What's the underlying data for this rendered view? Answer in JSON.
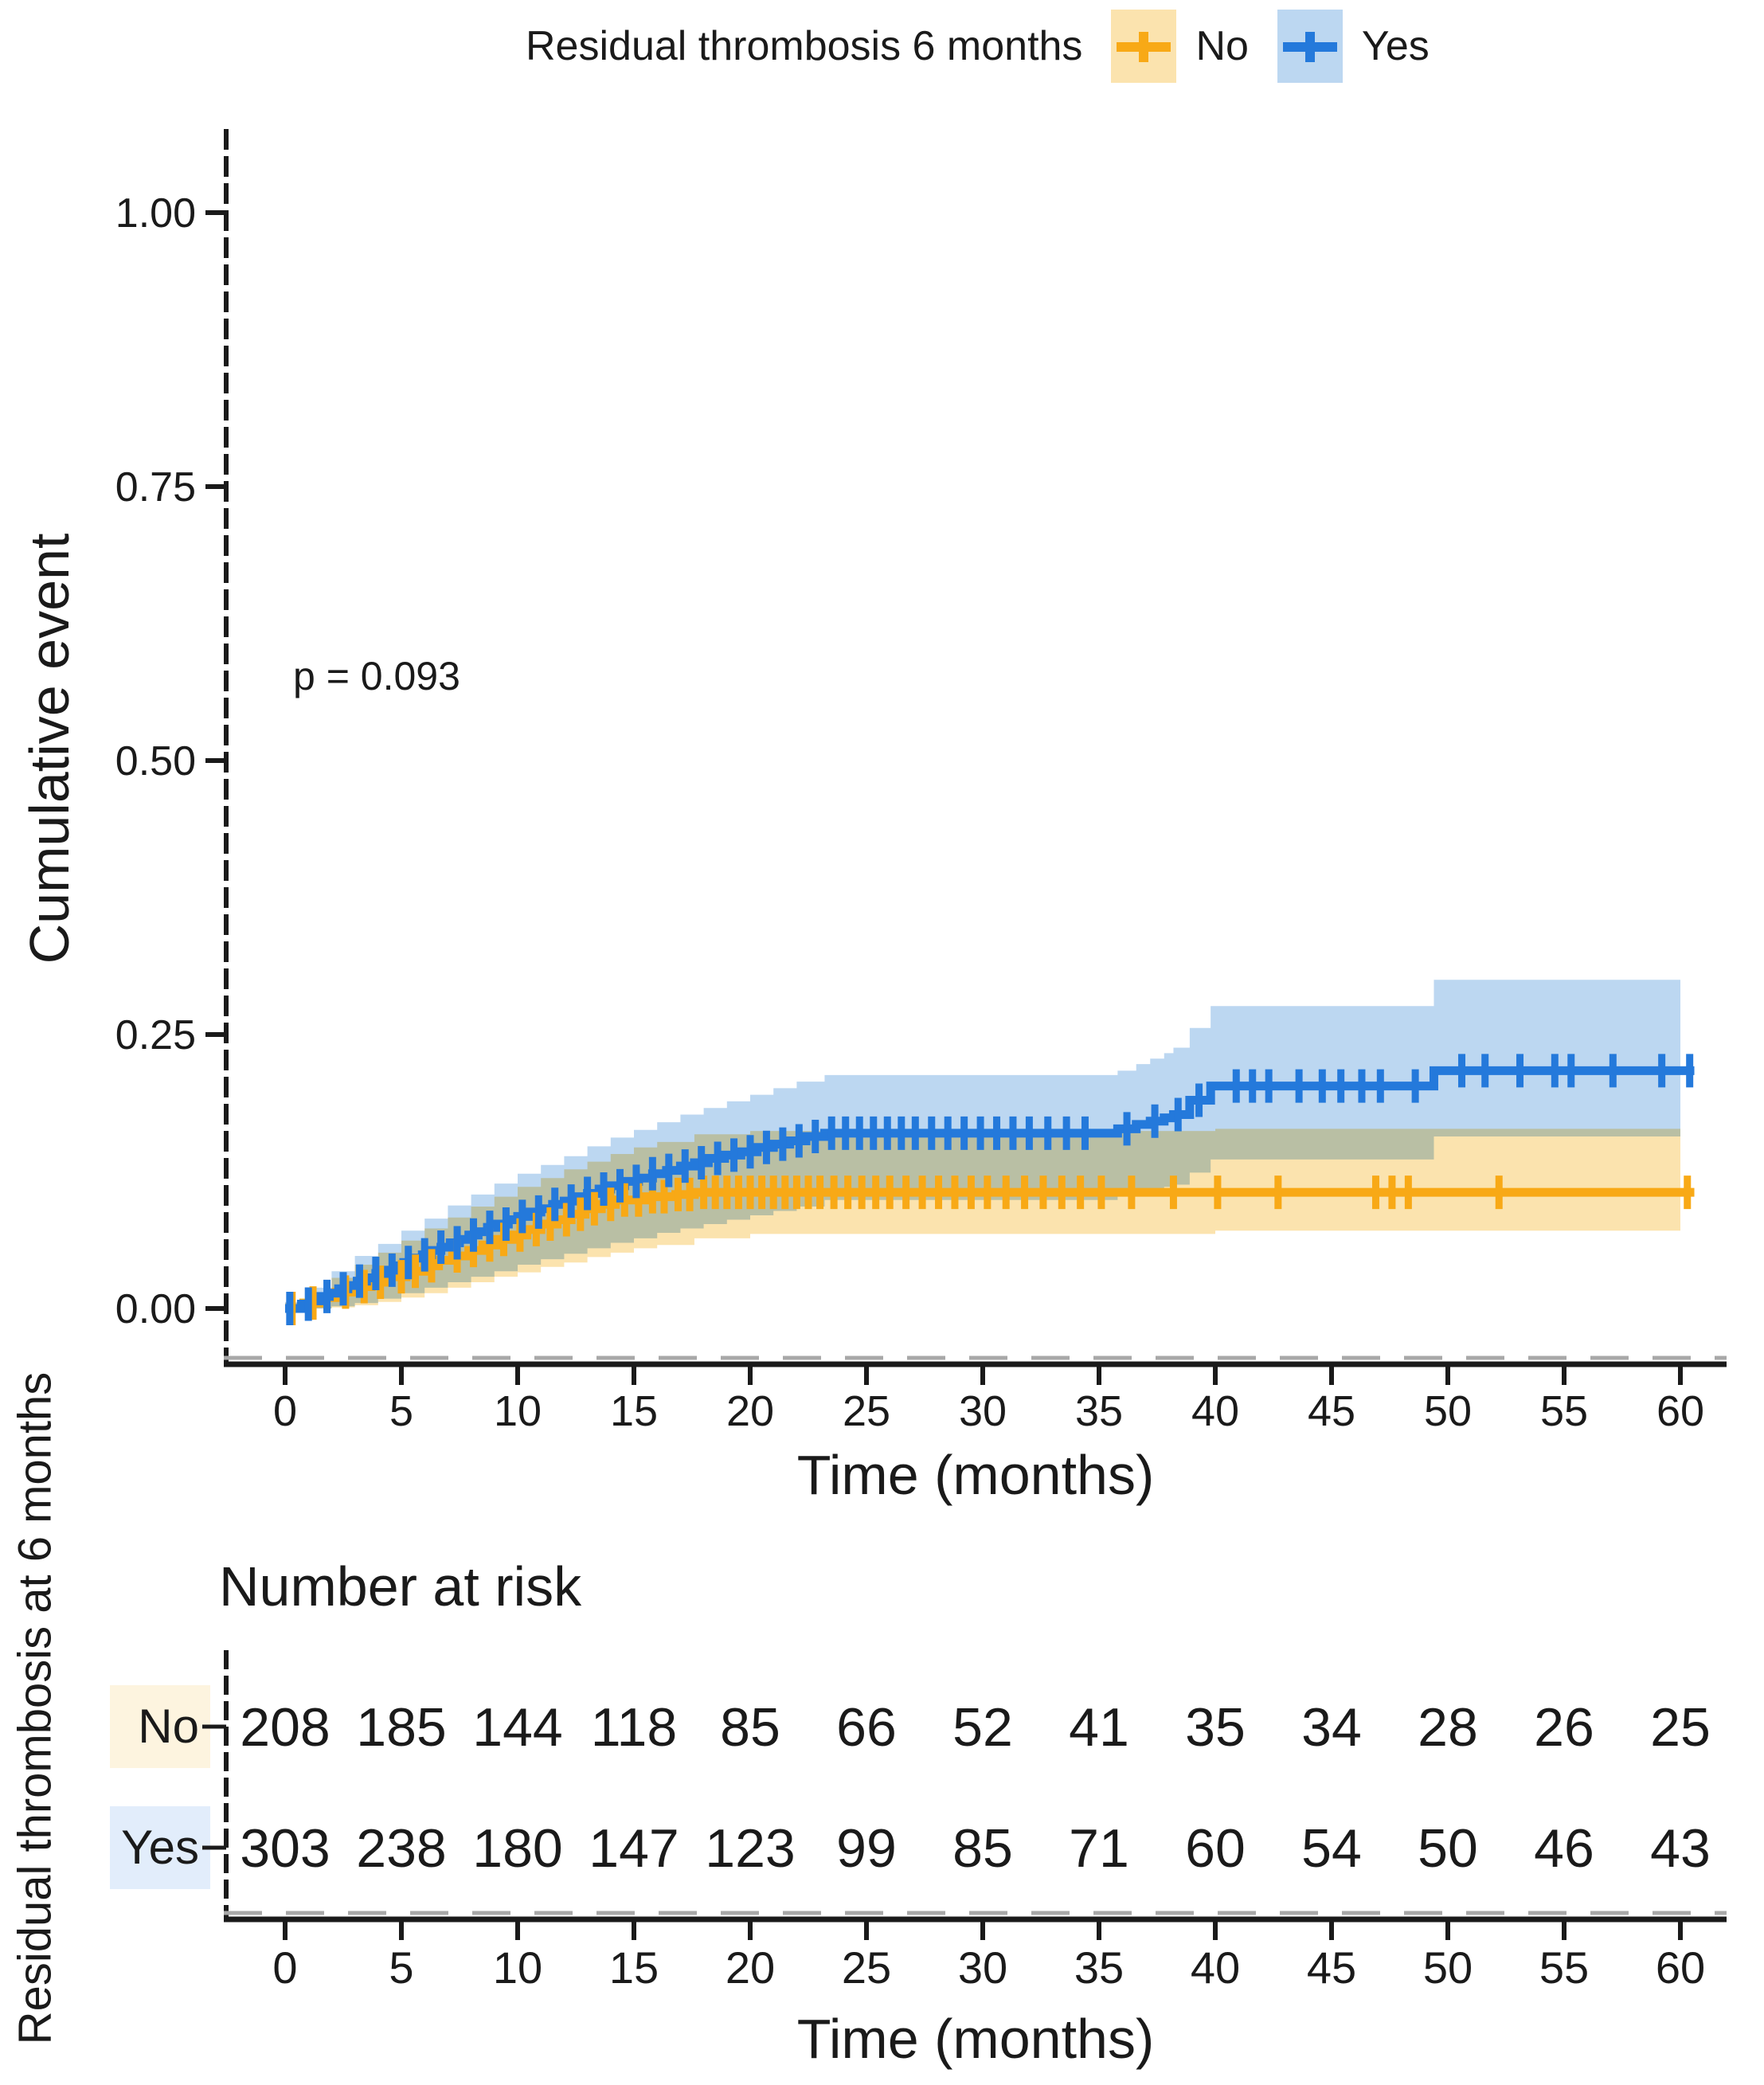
{
  "legend": {
    "title": "Residual thrombosis 6 months",
    "items": [
      {
        "label": "No",
        "color": "#F8A916",
        "band_color": "#FBE3AE"
      },
      {
        "label": "Yes",
        "color": "#2479DB",
        "band_color": "#BCD7F1"
      }
    ]
  },
  "annotation": {
    "p_value": "p = 0.093"
  },
  "axes": {
    "y_label": "Cumulative event",
    "x_label": "Time (months)",
    "y_tick_labels": [
      "1.00",
      "0.75",
      "0.50",
      "0.25",
      "0.00"
    ],
    "x_ticks": [
      0,
      5,
      10,
      15,
      20,
      25,
      30,
      35,
      40,
      45,
      50,
      55,
      60
    ]
  },
  "risk_table": {
    "title": "Number at risk",
    "axis_label": "Residual thrombosis at 6 months",
    "x_label": "Time (months)",
    "rows": [
      {
        "label": "No",
        "color": "#F8A916",
        "label_bg": "#FDF4DF",
        "values": [
          208,
          185,
          144,
          118,
          85,
          66,
          52,
          41,
          35,
          34,
          28,
          26,
          25
        ]
      },
      {
        "label": "Yes",
        "color": "#4D94E8",
        "label_bg": "#E2EDFB",
        "values": [
          303,
          238,
          180,
          147,
          123,
          99,
          85,
          71,
          60,
          54,
          50,
          46,
          43
        ]
      }
    ]
  },
  "chart_data": {
    "type": "line",
    "subtype": "kaplan-meier-cumulative-incidence",
    "group_title": "Residual thrombosis 6 months",
    "xlabel": "Time (months)",
    "ylabel": "Cumulative event",
    "xlim": [
      0,
      62
    ],
    "ylim": [
      0,
      1.04
    ],
    "x_ticks": [
      0,
      5,
      10,
      15,
      20,
      25,
      30,
      35,
      40,
      45,
      50,
      55,
      60
    ],
    "y_ticks": [
      0,
      0.25,
      0.5,
      0.75,
      1.0
    ],
    "p_value_text": "p = 0.093",
    "series": [
      {
        "name": "No",
        "color": "#F8A916",
        "band_color": "#FBE3AE",
        "n_at_start": 208,
        "steps": [
          [
            0,
            0
          ],
          [
            0.8,
            0.005
          ],
          [
            1.5,
            0.01
          ],
          [
            2.2,
            0.015
          ],
          [
            3,
            0.02
          ],
          [
            3.7,
            0.024
          ],
          [
            4.5,
            0.029
          ],
          [
            5.2,
            0.034
          ],
          [
            6,
            0.039
          ],
          [
            6.6,
            0.044
          ],
          [
            7.2,
            0.048
          ],
          [
            7.9,
            0.053
          ],
          [
            8.5,
            0.058
          ],
          [
            9.1,
            0.063
          ],
          [
            9.8,
            0.067
          ],
          [
            10.4,
            0.072
          ],
          [
            11,
            0.077
          ],
          [
            11.7,
            0.081
          ],
          [
            12.3,
            0.086
          ],
          [
            12.9,
            0.091
          ],
          [
            13.6,
            0.095
          ],
          [
            14.2,
            0.099
          ],
          [
            15.5,
            0.102
          ],
          [
            16.8,
            0.104
          ],
          [
            17.6,
            0.106
          ],
          [
            60.6,
            0.106
          ]
        ],
        "band": [
          [
            0,
            0,
            0.005
          ],
          [
            1,
            0,
            0.014
          ],
          [
            2,
            0.001,
            0.028
          ],
          [
            3,
            0.003,
            0.04
          ],
          [
            4,
            0.006,
            0.051
          ],
          [
            5,
            0.01,
            0.062
          ],
          [
            6,
            0.014,
            0.073
          ],
          [
            7,
            0.019,
            0.083
          ],
          [
            8,
            0.024,
            0.093
          ],
          [
            9,
            0.029,
            0.102
          ],
          [
            10,
            0.033,
            0.111
          ],
          [
            11,
            0.038,
            0.119
          ],
          [
            12,
            0.042,
            0.127
          ],
          [
            13,
            0.047,
            0.134
          ],
          [
            14,
            0.051,
            0.141
          ],
          [
            15,
            0.055,
            0.147
          ],
          [
            16,
            0.058,
            0.152
          ],
          [
            17.6,
            0.064,
            0.159
          ],
          [
            20,
            0.068,
            0.162
          ],
          [
            40,
            0.071,
            0.164
          ],
          [
            60,
            0.073,
            0.164
          ]
        ],
        "censors": [
          0.3,
          1.2,
          2.6,
          3.4,
          4.1,
          5,
          5.6,
          6.3,
          7.4,
          8.1,
          8.8,
          9.4,
          10.1,
          10.8,
          11.4,
          12.1,
          12.7,
          13.3,
          14,
          14.6,
          15.2,
          15.8,
          16.3,
          16.9,
          17.4,
          18,
          18.5,
          19,
          19.5,
          20,
          20.5,
          21,
          21.5,
          22,
          22.5,
          23,
          23.6,
          24.2,
          24.8,
          25.4,
          26,
          26.7,
          27.4,
          28.1,
          28.8,
          29.5,
          30.2,
          31,
          31.8,
          32.6,
          33.4,
          34.2,
          35.1,
          36.4,
          38.2,
          40.1,
          42.7,
          46.9,
          47.6,
          48.3,
          52.2,
          60.3
        ]
      },
      {
        "name": "Yes",
        "color": "#2479DB",
        "band_color": "#BCD7F1",
        "n_at_start": 303,
        "steps": [
          [
            0,
            0
          ],
          [
            0.7,
            0.004
          ],
          [
            1.1,
            0.007
          ],
          [
            1.5,
            0.011
          ],
          [
            1.9,
            0.014
          ],
          [
            2.3,
            0.018
          ],
          [
            2.7,
            0.021
          ],
          [
            3.1,
            0.025
          ],
          [
            3.5,
            0.028
          ],
          [
            3.9,
            0.032
          ],
          [
            4.3,
            0.035
          ],
          [
            4.7,
            0.039
          ],
          [
            5.1,
            0.042
          ],
          [
            5.5,
            0.046
          ],
          [
            5.9,
            0.049
          ],
          [
            6.3,
            0.053
          ],
          [
            6.7,
            0.056
          ],
          [
            7.1,
            0.06
          ],
          [
            7.5,
            0.063
          ],
          [
            7.9,
            0.067
          ],
          [
            8.3,
            0.07
          ],
          [
            8.7,
            0.074
          ],
          [
            9.1,
            0.077
          ],
          [
            9.6,
            0.081
          ],
          [
            10,
            0.084
          ],
          [
            10.5,
            0.088
          ],
          [
            11,
            0.091
          ],
          [
            11.5,
            0.095
          ],
          [
            12,
            0.098
          ],
          [
            12.5,
            0.102
          ],
          [
            13,
            0.105
          ],
          [
            13.5,
            0.109
          ],
          [
            14,
            0.112
          ],
          [
            14.6,
            0.116
          ],
          [
            15.2,
            0.119
          ],
          [
            15.8,
            0.123
          ],
          [
            16.4,
            0.126
          ],
          [
            17,
            0.13
          ],
          [
            17.6,
            0.133
          ],
          [
            18.2,
            0.137
          ],
          [
            18.9,
            0.14
          ],
          [
            19.6,
            0.143
          ],
          [
            20.3,
            0.147
          ],
          [
            21,
            0.15
          ],
          [
            21.7,
            0.153
          ],
          [
            22.4,
            0.157
          ],
          [
            23.2,
            0.16
          ],
          [
            35.8,
            0.164
          ],
          [
            36.6,
            0.168
          ],
          [
            37.2,
            0.171
          ],
          [
            37.8,
            0.174
          ],
          [
            38.2,
            0.177
          ],
          [
            38.9,
            0.19
          ],
          [
            39.8,
            0.203
          ],
          [
            49.4,
            0.217
          ],
          [
            60.6,
            0.217
          ]
        ],
        "band": [
          [
            0,
            0,
            0.006
          ],
          [
            1,
            0,
            0.019
          ],
          [
            2,
            0.002,
            0.034
          ],
          [
            3,
            0.005,
            0.048
          ],
          [
            4,
            0.009,
            0.059
          ],
          [
            5,
            0.014,
            0.071
          ],
          [
            6,
            0.019,
            0.082
          ],
          [
            7,
            0.024,
            0.094
          ],
          [
            8,
            0.029,
            0.104
          ],
          [
            9,
            0.034,
            0.114
          ],
          [
            10,
            0.04,
            0.123
          ],
          [
            11,
            0.045,
            0.131
          ],
          [
            12,
            0.05,
            0.139
          ],
          [
            13,
            0.055,
            0.148
          ],
          [
            14,
            0.06,
            0.156
          ],
          [
            15,
            0.064,
            0.163
          ],
          [
            16,
            0.069,
            0.17
          ],
          [
            17,
            0.073,
            0.177
          ],
          [
            18,
            0.077,
            0.183
          ],
          [
            19,
            0.081,
            0.189
          ],
          [
            20,
            0.085,
            0.195
          ],
          [
            21,
            0.089,
            0.201
          ],
          [
            22,
            0.093,
            0.207
          ],
          [
            23.2,
            0.099,
            0.213
          ],
          [
            35.8,
            0.103,
            0.217
          ],
          [
            36.6,
            0.106,
            0.223
          ],
          [
            37.2,
            0.109,
            0.228
          ],
          [
            37.8,
            0.111,
            0.233
          ],
          [
            38.2,
            0.113,
            0.238
          ],
          [
            38.9,
            0.124,
            0.256
          ],
          [
            39.8,
            0.136,
            0.276
          ],
          [
            49.4,
            0.157,
            0.3
          ],
          [
            60,
            0.16,
            0.302
          ]
        ],
        "censors": [
          0.2,
          1,
          1.8,
          2.5,
          3.2,
          3.9,
          4.6,
          5.3,
          6,
          6.7,
          7.4,
          8.1,
          8.8,
          9.5,
          10.2,
          10.9,
          11.6,
          12.3,
          13,
          13.7,
          14.4,
          15.1,
          15.8,
          16.5,
          17.2,
          17.9,
          18.6,
          19.3,
          20,
          20.7,
          21.4,
          22.1,
          22.8,
          23.5,
          24.1,
          24.7,
          25.3,
          25.9,
          26.5,
          27.1,
          27.8,
          28.5,
          29.2,
          29.9,
          30.6,
          31.3,
          32,
          32.8,
          33.6,
          34.4,
          36.2,
          37.4,
          38.4,
          39.3,
          40.9,
          41.6,
          42.3,
          43.6,
          44.6,
          45.4,
          46.3,
          47.1,
          48.6,
          50.6,
          51.6,
          53.1,
          54.6,
          55.3,
          57.1,
          59.2,
          60.4
        ]
      }
    ],
    "risk_table": {
      "title": "Number at risk",
      "times": [
        0,
        5,
        10,
        15,
        20,
        25,
        30,
        35,
        40,
        45,
        50,
        55,
        60
      ],
      "No": [
        208,
        185,
        144,
        118,
        85,
        66,
        52,
        41,
        35,
        34,
        28,
        26,
        25
      ],
      "Yes": [
        303,
        238,
        180,
        147,
        123,
        99,
        85,
        71,
        60,
        54,
        50,
        46,
        43
      ]
    }
  }
}
